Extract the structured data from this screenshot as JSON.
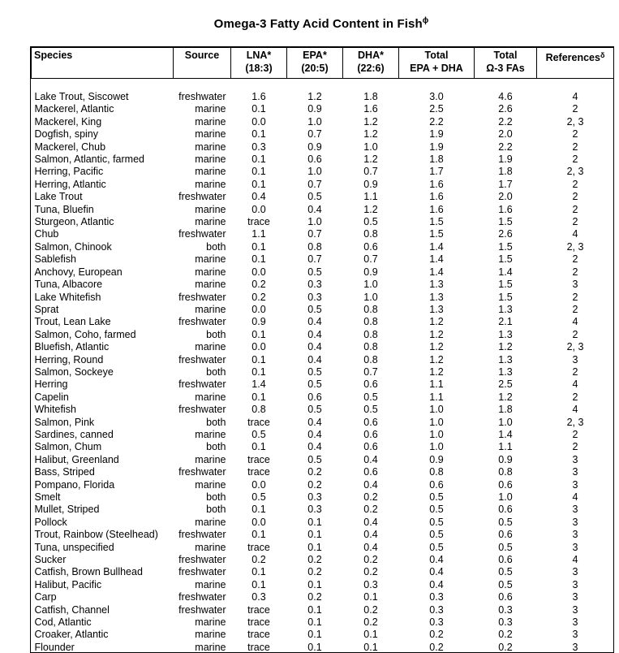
{
  "title": {
    "text": "Omega-3 Fatty Acid Content in Fish",
    "superscript": "ϕ"
  },
  "colors": {
    "text": "#000000",
    "background": "#ffffff",
    "border": "#000000"
  },
  "table": {
    "columns": [
      {
        "key": "species",
        "line1": "Species",
        "line2": "",
        "superscript": ""
      },
      {
        "key": "source",
        "line1": "Source",
        "line2": "",
        "superscript": ""
      },
      {
        "key": "lna",
        "line1": "LNA*",
        "line2": "(18:3)",
        "superscript": ""
      },
      {
        "key": "epa",
        "line1": "EPA*",
        "line2": "(20:5)",
        "superscript": ""
      },
      {
        "key": "dha",
        "line1": "DHA*",
        "line2": "(22:6)",
        "superscript": ""
      },
      {
        "key": "total-epa-dha",
        "line1": "Total",
        "line2": "EPA + DHA",
        "superscript": ""
      },
      {
        "key": "total-omega3",
        "line1": "Total",
        "line2": "Ω-3 FAs",
        "superscript": ""
      },
      {
        "key": "references",
        "line1": "References",
        "line2": "",
        "superscript": "δ"
      }
    ],
    "rows": [
      [
        "Lake Trout, Siscowet",
        "freshwater",
        "1.6",
        "1.2",
        "1.8",
        "3.0",
        "4.6",
        "4"
      ],
      [
        "Mackerel, Atlantic",
        "marine",
        "0.1",
        "0.9",
        "1.6",
        "2.5",
        "2.6",
        "2"
      ],
      [
        "Mackerel, King",
        "marine",
        "0.0",
        "1.0",
        "1.2",
        "2.2",
        "2.2",
        "2, 3"
      ],
      [
        "Dogfish, spiny",
        "marine",
        "0.1",
        "0.7",
        "1.2",
        "1.9",
        "2.0",
        "2"
      ],
      [
        "Mackerel, Chub",
        "marine",
        "0.3",
        "0.9",
        "1.0",
        "1.9",
        "2.2",
        "2"
      ],
      [
        "Salmon, Atlantic, farmed",
        "marine",
        "0.1",
        "0.6",
        "1.2",
        "1.8",
        "1.9",
        "2"
      ],
      [
        "Herring, Pacific",
        "marine",
        "0.1",
        "1.0",
        "0.7",
        "1.7",
        "1.8",
        "2, 3"
      ],
      [
        "Herring, Atlantic",
        "marine",
        "0.1",
        "0.7",
        "0.9",
        "1.6",
        "1.7",
        "2"
      ],
      [
        "Lake Trout",
        "freshwater",
        "0.4",
        "0.5",
        "1.1",
        "1.6",
        "2.0",
        "2"
      ],
      [
        "Tuna, Bluefin",
        "marine",
        "0.0",
        "0.4",
        "1.2",
        "1.6",
        "1.6",
        "2"
      ],
      [
        "Sturgeon, Atlantic",
        "marine",
        "trace",
        "1.0",
        "0.5",
        "1.5",
        "1.5",
        "2"
      ],
      [
        "Chub",
        "freshwater",
        "1.1",
        "0.7",
        "0.8",
        "1.5",
        "2.6",
        "4"
      ],
      [
        "Salmon, Chinook",
        "both",
        "0.1",
        "0.8",
        "0.6",
        "1.4",
        "1.5",
        "2, 3"
      ],
      [
        "Sablefish",
        "marine",
        "0.1",
        "0.7",
        "0.7",
        "1.4",
        "1.5",
        "2"
      ],
      [
        "Anchovy, European",
        "marine",
        "0.0",
        "0.5",
        "0.9",
        "1.4",
        "1.4",
        "2"
      ],
      [
        "Tuna, Albacore",
        "marine",
        "0.2",
        "0.3",
        "1.0",
        "1.3",
        "1.5",
        "3"
      ],
      [
        "Lake Whitefish",
        "freshwater",
        "0.2",
        "0.3",
        "1.0",
        "1.3",
        "1.5",
        "2"
      ],
      [
        "Sprat",
        "marine",
        "0.0",
        "0.5",
        "0.8",
        "1.3",
        "1.3",
        "2"
      ],
      [
        "Trout, Lean Lake",
        "freshwater",
        "0.9",
        "0.4",
        "0.8",
        "1.2",
        "2.1",
        "4"
      ],
      [
        "Salmon, Coho, farmed",
        "both",
        "0.1",
        "0.4",
        "0.8",
        "1.2",
        "1.3",
        "2"
      ],
      [
        "Bluefish, Atlantic",
        "marine",
        "0.0",
        "0.4",
        "0.8",
        "1.2",
        "1.2",
        "2, 3"
      ],
      [
        "Herring, Round",
        "freshwater",
        "0.1",
        "0.4",
        "0.8",
        "1.2",
        "1.3",
        "3"
      ],
      [
        "Salmon, Sockeye",
        "both",
        "0.1",
        "0.5",
        "0.7",
        "1.2",
        "1.3",
        "2"
      ],
      [
        "Herring",
        "freshwater",
        "1.4",
        "0.5",
        "0.6",
        "1.1",
        "2.5",
        "4"
      ],
      [
        "Capelin",
        "marine",
        "0.1",
        "0.6",
        "0.5",
        "1.1",
        "1.2",
        "2"
      ],
      [
        "Whitefish",
        "freshwater",
        "0.8",
        "0.5",
        "0.5",
        "1.0",
        "1.8",
        "4"
      ],
      [
        "Salmon, Pink",
        "both",
        "trace",
        "0.4",
        "0.6",
        "1.0",
        "1.0",
        "2, 3"
      ],
      [
        "Sardines, canned",
        "marine",
        "0.5",
        "0.4",
        "0.6",
        "1.0",
        "1.4",
        "2"
      ],
      [
        "Salmon, Chum",
        "both",
        "0.1",
        "0.4",
        "0.6",
        "1.0",
        "1.1",
        "2"
      ],
      [
        "Halibut, Greenland",
        "marine",
        "trace",
        "0.5",
        "0.4",
        "0.9",
        "0.9",
        "3"
      ],
      [
        "Bass, Striped",
        "freshwater",
        "trace",
        "0.2",
        "0.6",
        "0.8",
        "0.8",
        "3"
      ],
      [
        "Pompano, Florida",
        "marine",
        "0.0",
        "0.2",
        "0.4",
        "0.6",
        "0.6",
        "3"
      ],
      [
        "Smelt",
        "both",
        "0.5",
        "0.3",
        "0.2",
        "0.5",
        "1.0",
        "4"
      ],
      [
        "Mullet, Striped",
        "both",
        "0.1",
        "0.3",
        "0.2",
        "0.5",
        "0.6",
        "3"
      ],
      [
        "Pollock",
        "marine",
        "0.0",
        "0.1",
        "0.4",
        "0.5",
        "0.5",
        "3"
      ],
      [
        "Trout, Rainbow (Steelhead)",
        "freshwater",
        "0.1",
        "0.1",
        "0.4",
        "0.5",
        "0.6",
        "3"
      ],
      [
        "Tuna, unspecified",
        "marine",
        "trace",
        "0.1",
        "0.4",
        "0.5",
        "0.5",
        "3"
      ],
      [
        "Sucker",
        "freshwater",
        "0.2",
        "0.2",
        "0.2",
        "0.4",
        "0.6",
        "4"
      ],
      [
        "Catfish, Brown Bullhead",
        "freshwater",
        "0.1",
        "0.2",
        "0.2",
        "0.4",
        "0.5",
        "3"
      ],
      [
        "Halibut, Pacific",
        "marine",
        "0.1",
        "0.1",
        "0.3",
        "0.4",
        "0.5",
        "3"
      ],
      [
        "Carp",
        "freshwater",
        "0.3",
        "0.2",
        "0.1",
        "0.3",
        "0.6",
        "3"
      ],
      [
        "Catfish, Channel",
        "freshwater",
        "trace",
        "0.1",
        "0.2",
        "0.3",
        "0.3",
        "3"
      ],
      [
        "Cod, Atlantic",
        "marine",
        "trace",
        "0.1",
        "0.2",
        "0.3",
        "0.3",
        "3"
      ],
      [
        "Croaker, Atlantic",
        "marine",
        "trace",
        "0.1",
        "0.1",
        "0.2",
        "0.2",
        "3"
      ],
      [
        "Flounder",
        "marine",
        "trace",
        "0.1",
        "0.1",
        "0.2",
        "0.2",
        "3"
      ]
    ]
  }
}
